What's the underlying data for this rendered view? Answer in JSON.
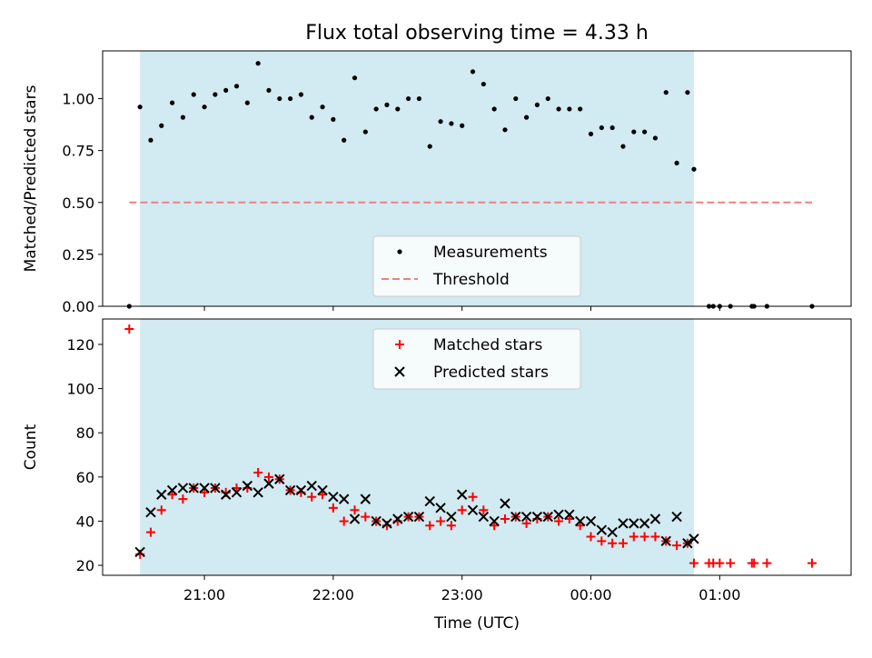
{
  "title": "Flux total observing time = 4.33 h",
  "colors": {
    "band": "#add8e6",
    "measurement": "#000000",
    "threshold": "#f08080",
    "matched": "#ff0000",
    "predicted": "#000000"
  },
  "chart_data": [
    {
      "type": "scatter",
      "title": "Flux total observing time = 4.33 h",
      "xlabel": "",
      "ylabel": "Matched/Predicted stars",
      "xlim_hours": [
        20.21,
        26.02
      ],
      "ylim": [
        0,
        1.23
      ],
      "yticks": [
        "0.00",
        "0.25",
        "0.50",
        "0.75",
        "1.00"
      ],
      "yticks_values": [
        0,
        0.25,
        0.5,
        0.75,
        1.0
      ],
      "observing_band": {
        "start": "20:30",
        "end": "00:48"
      },
      "threshold": {
        "y": 0.5,
        "x_start": "20:25",
        "x_end": "01:43"
      },
      "legend": [
        "Measurements",
        "Threshold"
      ],
      "legend_position": "lower-center",
      "series": [
        {
          "name": "Measurements",
          "points": [
            [
              "20:25",
              0.0
            ],
            [
              "20:30",
              0.96
            ],
            [
              "20:35",
              0.8
            ],
            [
              "20:40",
              0.87
            ],
            [
              "20:45",
              0.98
            ],
            [
              "20:50",
              0.91
            ],
            [
              "20:55",
              1.02
            ],
            [
              "21:00",
              0.96
            ],
            [
              "21:05",
              1.02
            ],
            [
              "21:10",
              1.04
            ],
            [
              "21:15",
              1.06
            ],
            [
              "21:20",
              0.98
            ],
            [
              "21:25",
              1.17
            ],
            [
              "21:30",
              1.04
            ],
            [
              "21:35",
              1.0
            ],
            [
              "21:40",
              1.0
            ],
            [
              "21:45",
              1.02
            ],
            [
              "21:50",
              0.91
            ],
            [
              "21:55",
              0.96
            ],
            [
              "22:00",
              0.9
            ],
            [
              "22:05",
              0.8
            ],
            [
              "22:10",
              1.1
            ],
            [
              "22:15",
              0.84
            ],
            [
              "22:20",
              0.95
            ],
            [
              "22:25",
              0.97
            ],
            [
              "22:30",
              0.95
            ],
            [
              "22:35",
              1.0
            ],
            [
              "22:40",
              1.0
            ],
            [
              "22:45",
              0.77
            ],
            [
              "22:50",
              0.89
            ],
            [
              "22:55",
              0.88
            ],
            [
              "23:00",
              0.87
            ],
            [
              "23:05",
              1.13
            ],
            [
              "23:10",
              1.07
            ],
            [
              "23:15",
              0.95
            ],
            [
              "23:20",
              0.85
            ],
            [
              "23:25",
              1.0
            ],
            [
              "23:30",
              0.91
            ],
            [
              "23:35",
              0.97
            ],
            [
              "23:40",
              1.0
            ],
            [
              "23:45",
              0.95
            ],
            [
              "23:50",
              0.95
            ],
            [
              "23:55",
              0.95
            ],
            [
              "00:00",
              0.83
            ],
            [
              "00:05",
              0.86
            ],
            [
              "00:10",
              0.86
            ],
            [
              "00:15",
              0.77
            ],
            [
              "00:20",
              0.84
            ],
            [
              "00:25",
              0.84
            ],
            [
              "00:30",
              0.81
            ],
            [
              "00:35",
              1.03
            ],
            [
              "00:40",
              0.69
            ],
            [
              "00:45",
              1.03
            ],
            [
              "00:48",
              0.66
            ],
            [
              "00:55",
              0.0
            ],
            [
              "00:57",
              0.0
            ],
            [
              "01:00",
              0.0
            ],
            [
              "01:05",
              0.0
            ],
            [
              "01:15",
              0.0
            ],
            [
              "01:16",
              0.0
            ],
            [
              "01:22",
              0.0
            ],
            [
              "01:43",
              0.0
            ]
          ]
        }
      ]
    },
    {
      "type": "scatter",
      "xlabel": "Time (UTC)",
      "ylabel": "Count",
      "xlim_hours": [
        20.21,
        26.02
      ],
      "ylim": [
        15.5,
        131.5
      ],
      "yticks": [
        "20",
        "40",
        "60",
        "80",
        "100",
        "120"
      ],
      "yticks_values": [
        20,
        40,
        60,
        80,
        100,
        120
      ],
      "xticks": [
        "21:00",
        "22:00",
        "23:00",
        "00:00",
        "01:00"
      ],
      "xticks_hours": [
        21,
        22,
        23,
        24,
        25
      ],
      "observing_band": {
        "start": "20:30",
        "end": "00:48"
      },
      "legend": [
        "Matched stars",
        "Predicted stars"
      ],
      "legend_position": "upper-center",
      "series": [
        {
          "name": "Matched stars",
          "points": [
            [
              "20:25",
              127
            ],
            [
              "20:30",
              25
            ],
            [
              "20:35",
              35
            ],
            [
              "20:40",
              45
            ],
            [
              "20:45",
              52
            ],
            [
              "20:50",
              50
            ],
            [
              "20:55",
              55
            ],
            [
              "21:00",
              53
            ],
            [
              "21:05",
              55
            ],
            [
              "21:10",
              53
            ],
            [
              "21:15",
              55
            ],
            [
              "21:20",
              55
            ],
            [
              "21:25",
              62
            ],
            [
              "21:30",
              60
            ],
            [
              "21:35",
              59
            ],
            [
              "21:40",
              54
            ],
            [
              "21:45",
              53
            ],
            [
              "21:50",
              51
            ],
            [
              "21:55",
              52
            ],
            [
              "22:00",
              46
            ],
            [
              "22:05",
              40
            ],
            [
              "22:10",
              45
            ],
            [
              "22:15",
              42
            ],
            [
              "22:20",
              40
            ],
            [
              "22:25",
              38
            ],
            [
              "22:30",
              40
            ],
            [
              "22:35",
              42
            ],
            [
              "22:40",
              42
            ],
            [
              "22:45",
              38
            ],
            [
              "22:50",
              40
            ],
            [
              "22:55",
              38
            ],
            [
              "23:00",
              45
            ],
            [
              "23:05",
              51
            ],
            [
              "23:10",
              45
            ],
            [
              "23:15",
              38
            ],
            [
              "23:20",
              41
            ],
            [
              "23:25",
              42
            ],
            [
              "23:30",
              39
            ],
            [
              "23:35",
              41
            ],
            [
              "23:40",
              42
            ],
            [
              "23:45",
              40
            ],
            [
              "23:50",
              41
            ],
            [
              "23:55",
              38
            ],
            [
              "00:00",
              33
            ],
            [
              "00:05",
              31
            ],
            [
              "00:10",
              30
            ],
            [
              "00:15",
              30
            ],
            [
              "00:20",
              33
            ],
            [
              "00:25",
              33
            ],
            [
              "00:30",
              33
            ],
            [
              "00:35",
              31
            ],
            [
              "00:40",
              29
            ],
            [
              "00:45",
              30
            ],
            [
              "00:48",
              21
            ],
            [
              "00:55",
              21
            ],
            [
              "00:57",
              21
            ],
            [
              "01:00",
              21
            ],
            [
              "01:05",
              21
            ],
            [
              "01:15",
              21
            ],
            [
              "01:16",
              21
            ],
            [
              "01:22",
              21
            ],
            [
              "01:43",
              21
            ]
          ]
        },
        {
          "name": "Predicted stars",
          "points": [
            [
              "20:30",
              26
            ],
            [
              "20:35",
              44
            ],
            [
              "20:40",
              52
            ],
            [
              "20:45",
              54
            ],
            [
              "20:50",
              55
            ],
            [
              "20:55",
              55
            ],
            [
              "21:00",
              55
            ],
            [
              "21:05",
              55
            ],
            [
              "21:10",
              52
            ],
            [
              "21:15",
              53
            ],
            [
              "21:20",
              56
            ],
            [
              "21:25",
              53
            ],
            [
              "21:30",
              57
            ],
            [
              "21:35",
              59
            ],
            [
              "21:40",
              54
            ],
            [
              "21:45",
              54
            ],
            [
              "21:50",
              56
            ],
            [
              "21:55",
              54
            ],
            [
              "22:00",
              51
            ],
            [
              "22:05",
              50
            ],
            [
              "22:10",
              41
            ],
            [
              "22:15",
              50
            ],
            [
              "22:20",
              40
            ],
            [
              "22:25",
              39
            ],
            [
              "22:30",
              41
            ],
            [
              "22:35",
              42
            ],
            [
              "22:40",
              42
            ],
            [
              "22:45",
              49
            ],
            [
              "22:50",
              46
            ],
            [
              "22:55",
              42
            ],
            [
              "23:00",
              52
            ],
            [
              "23:05",
              45
            ],
            [
              "23:10",
              42
            ],
            [
              "23:15",
              40
            ],
            [
              "23:20",
              48
            ],
            [
              "23:25",
              42
            ],
            [
              "23:30",
              42
            ],
            [
              "23:35",
              42
            ],
            [
              "23:40",
              42
            ],
            [
              "23:45",
              43
            ],
            [
              "23:50",
              43
            ],
            [
              "23:55",
              40
            ],
            [
              "00:00",
              40
            ],
            [
              "00:05",
              36
            ],
            [
              "00:10",
              35
            ],
            [
              "00:15",
              39
            ],
            [
              "00:20",
              39
            ],
            [
              "00:25",
              39
            ],
            [
              "00:30",
              41
            ],
            [
              "00:35",
              31
            ],
            [
              "00:40",
              42
            ],
            [
              "00:45",
              30
            ],
            [
              "00:48",
              32
            ]
          ]
        }
      ]
    }
  ]
}
